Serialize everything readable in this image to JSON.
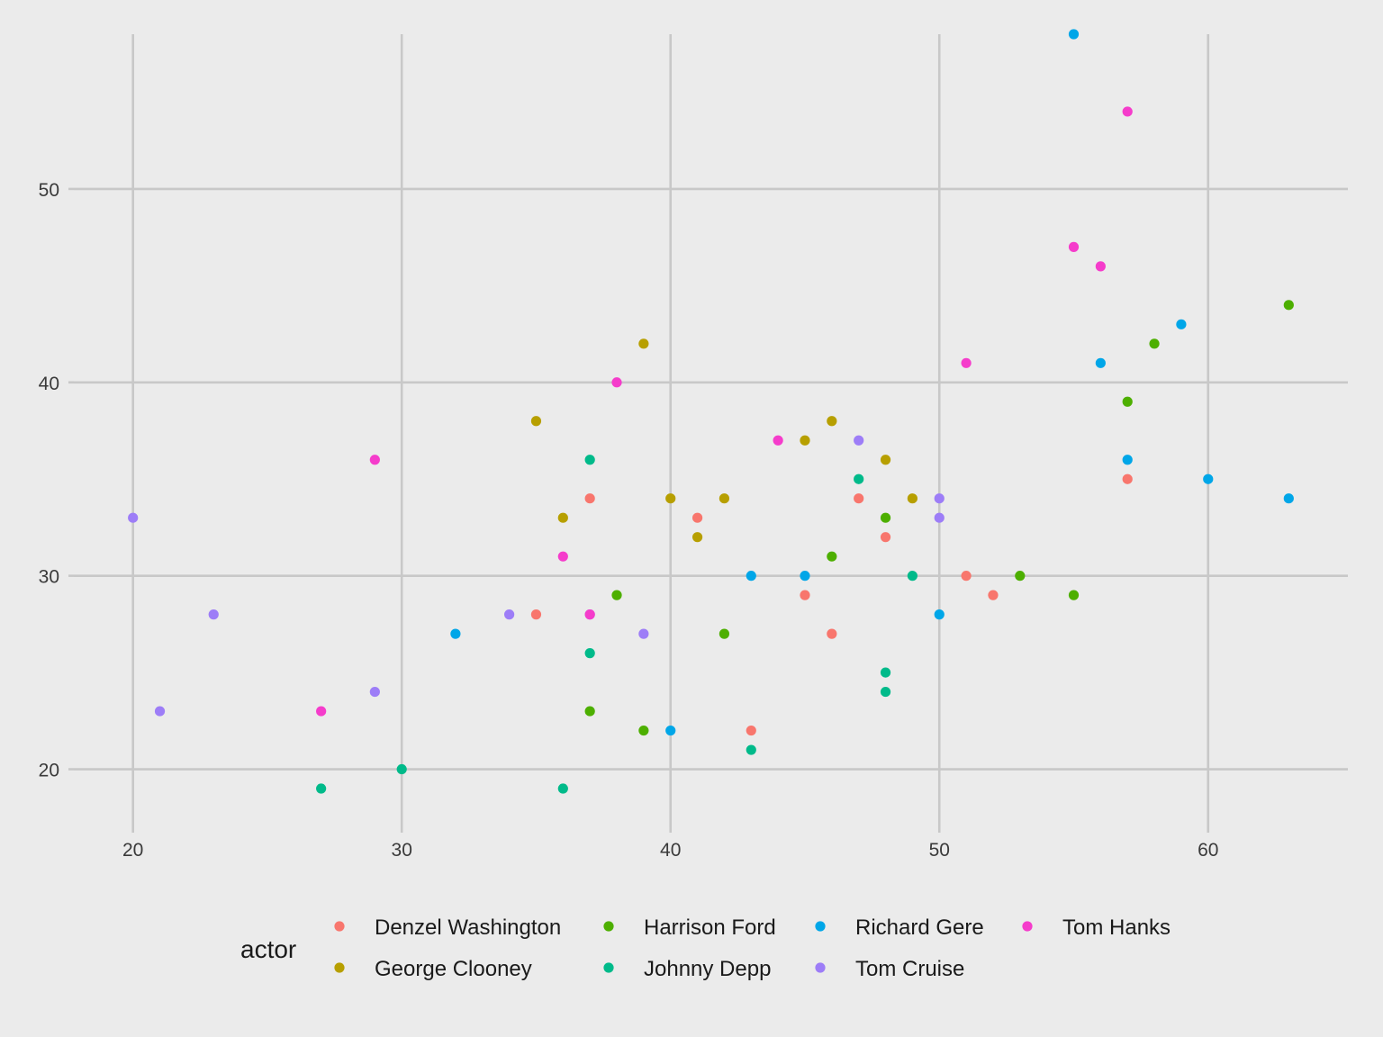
{
  "chart_data": {
    "type": "scatter",
    "title": "",
    "xlabel": "",
    "ylabel": "",
    "xlim": [
      17.8,
      65.2
    ],
    "ylim": [
      17,
      58
    ],
    "xticks": [
      20,
      30,
      40,
      50,
      60
    ],
    "yticks": [
      20,
      30,
      40,
      50
    ],
    "xtick_labels": [
      "20",
      "30",
      "40",
      "50",
      "60"
    ],
    "ytick_labels": [
      "20",
      "30",
      "40",
      "50"
    ],
    "grid": true,
    "background": "#ebebeb",
    "grid_color": "#c8c8c8",
    "legend": {
      "title": "actor",
      "position": "bottom",
      "rows": 2
    },
    "series": [
      {
        "name": "Denzel Washington",
        "color": "#f8766d",
        "points": [
          [
            35,
            28
          ],
          [
            37,
            34
          ],
          [
            41,
            33
          ],
          [
            43,
            22
          ],
          [
            45,
            29
          ],
          [
            46,
            27
          ],
          [
            47,
            34
          ],
          [
            48,
            32
          ],
          [
            51,
            30
          ],
          [
            52,
            29
          ],
          [
            57,
            35
          ]
        ]
      },
      {
        "name": "George Clooney",
        "color": "#b79f00",
        "points": [
          [
            35,
            38
          ],
          [
            36,
            33
          ],
          [
            39,
            42
          ],
          [
            40,
            34
          ],
          [
            41,
            32
          ],
          [
            42,
            34
          ],
          [
            45,
            37
          ],
          [
            46,
            38
          ],
          [
            48,
            36
          ],
          [
            49,
            34
          ]
        ]
      },
      {
        "name": "Harrison Ford",
        "color": "#4daf00",
        "points": [
          [
            37,
            23
          ],
          [
            38,
            29
          ],
          [
            39,
            22
          ],
          [
            42,
            27
          ],
          [
            46,
            31
          ],
          [
            48,
            33
          ],
          [
            53,
            30
          ],
          [
            55,
            29
          ],
          [
            57,
            39
          ],
          [
            58,
            42
          ],
          [
            63,
            44
          ]
        ]
      },
      {
        "name": "Johnny Depp",
        "color": "#00ba8a",
        "points": [
          [
            27,
            19
          ],
          [
            30,
            20
          ],
          [
            36,
            19
          ],
          [
            37,
            36
          ],
          [
            37,
            26
          ],
          [
            43,
            21
          ],
          [
            47,
            35
          ],
          [
            48,
            25
          ],
          [
            48,
            24
          ],
          [
            49,
            30
          ]
        ]
      },
      {
        "name": "Richard Gere",
        "color": "#00a6e8",
        "points": [
          [
            32,
            27
          ],
          [
            40,
            22
          ],
          [
            43,
            30
          ],
          [
            45,
            30
          ],
          [
            50,
            28
          ],
          [
            55,
            58
          ],
          [
            56,
            41
          ],
          [
            57,
            36
          ],
          [
            59,
            43
          ],
          [
            60,
            35
          ],
          [
            63,
            34
          ]
        ]
      },
      {
        "name": "Tom Cruise",
        "color": "#9d7df7",
        "points": [
          [
            20,
            33
          ],
          [
            21,
            23
          ],
          [
            23,
            28
          ],
          [
            29,
            24
          ],
          [
            34,
            28
          ],
          [
            37,
            28
          ],
          [
            39,
            27
          ],
          [
            47,
            37
          ],
          [
            50,
            34
          ],
          [
            50,
            33
          ]
        ]
      },
      {
        "name": "Tom Hanks",
        "color": "#f53ccb",
        "points": [
          [
            27,
            23
          ],
          [
            29,
            36
          ],
          [
            36,
            31
          ],
          [
            37,
            28
          ],
          [
            38,
            40
          ],
          [
            44,
            37
          ],
          [
            51,
            41
          ],
          [
            55,
            47
          ],
          [
            56,
            46
          ],
          [
            57,
            54
          ]
        ]
      }
    ]
  }
}
